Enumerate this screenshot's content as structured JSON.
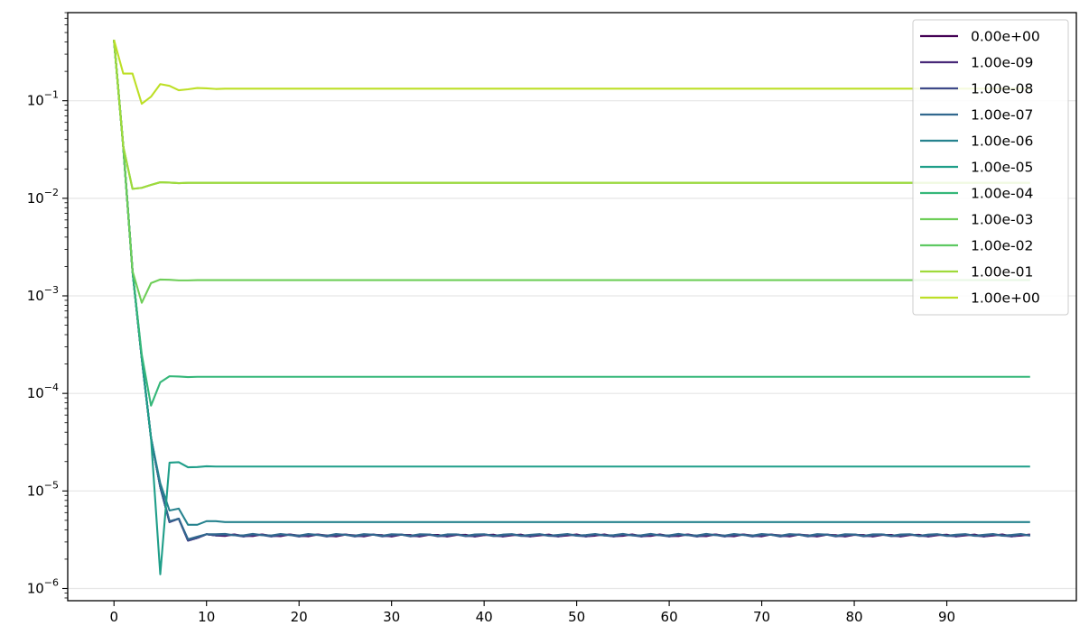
{
  "chart_data": {
    "type": "line",
    "title": "",
    "xlabel": "",
    "ylabel": "",
    "yscale": "log",
    "xlim": [
      -5,
      104
    ],
    "ylim": [
      7.5e-07,
      0.8
    ],
    "x_ticks": [
      0,
      10,
      20,
      30,
      40,
      50,
      60,
      70,
      80,
      90
    ],
    "x_tick_labels": [
      "0",
      "10",
      "20",
      "30",
      "40",
      "50",
      "60",
      "70",
      "80",
      "90"
    ],
    "y_ticks": [
      1e-06,
      1e-05,
      0.0001,
      0.001,
      0.01,
      0.1
    ],
    "y_tick_labels": [
      {
        "base": "10",
        "exp": "−6"
      },
      {
        "base": "10",
        "exp": "−5"
      },
      {
        "base": "10",
        "exp": "−4"
      },
      {
        "base": "10",
        "exp": "−3"
      },
      {
        "base": "10",
        "exp": "−2"
      },
      {
        "base": "10",
        "exp": "−1"
      }
    ],
    "grid": "y-major",
    "legend_position": "top-right",
    "x_start": 0,
    "x_end": 99,
    "series": [
      {
        "name": "0.00e+00",
        "color": "#440154",
        "head": [
          0.42,
          0.034,
          0.0018,
          0.00023,
          3.5e-05,
          1.1e-05,
          4.8e-06,
          5.2e-06,
          3.1e-06,
          3.3e-06,
          3.6e-06,
          3.5e-06
        ],
        "steady": 3.5e-06,
        "wiggle": 0.025
      },
      {
        "name": "1.00e-09",
        "color": "#482878",
        "head": [
          0.42,
          0.034,
          0.0018,
          0.00023,
          3.5e-05,
          1.1e-05,
          4.8e-06,
          5.2e-06,
          3.1e-06,
          3.3e-06,
          3.6e-06,
          3.5e-06
        ],
        "steady": 3.5e-06,
        "wiggle": 0.025
      },
      {
        "name": "1.00e-08",
        "color": "#3e4989",
        "head": [
          0.42,
          0.034,
          0.0018,
          0.00023,
          3.5e-05,
          1.1e-05,
          4.8e-06,
          5.2e-06,
          3.1e-06,
          3.3e-06,
          3.6e-06,
          3.5e-06
        ],
        "steady": 3.5e-06,
        "wiggle": 0.025
      },
      {
        "name": "1.00e-07",
        "color": "#31688e",
        "head": [
          0.42,
          0.034,
          0.0018,
          0.00023,
          3.5e-05,
          1.1e-05,
          4.9e-06,
          5.2e-06,
          3.2e-06,
          3.4e-06,
          3.6e-06,
          3.6e-06
        ],
        "steady": 3.55e-06,
        "wiggle": 0.022
      },
      {
        "name": "1.00e-06",
        "color": "#26828e",
        "head": [
          0.42,
          0.034,
          0.0018,
          0.00023,
          3.5e-05,
          1.2e-05,
          6.3e-06,
          6.6e-06,
          4.5e-06,
          4.5e-06,
          4.9e-06,
          4.9e-06
        ],
        "steady": 4.8e-06,
        "wiggle": 0.0
      },
      {
        "name": "1.00e-05",
        "color": "#1f9e89",
        "head": [
          0.42,
          0.034,
          0.0018,
          0.00023,
          3.5e-05,
          1.4e-06,
          1.95e-05,
          1.97e-05,
          1.75e-05,
          1.76e-05,
          1.79e-05,
          1.78e-05
        ],
        "steady": 1.78e-05,
        "wiggle": 0.0
      },
      {
        "name": "1.00e-04",
        "color": "#35b779",
        "head": [
          0.42,
          0.034,
          0.0018,
          0.00025,
          7.5e-05,
          0.00013,
          0.00015,
          0.000149,
          0.000147,
          0.000148,
          0.000148,
          0.000148
        ],
        "steady": 0.000148,
        "wiggle": 0.0
      },
      {
        "name": "1.00e-03",
        "color": "#6ece58",
        "head": [
          0.42,
          0.034,
          0.0018,
          0.00085,
          0.00135,
          0.00147,
          0.00146,
          0.00144,
          0.00144,
          0.00145,
          0.00145,
          0.00145
        ],
        "steady": 0.00145,
        "wiggle": 0.0
      },
      {
        "name": "1.00e-02",
        "color": "#5ec962",
        "head": [
          0.42,
          0.034,
          0.0125,
          0.0128,
          0.0137,
          0.0146,
          0.0145,
          0.0143,
          0.0144,
          0.0144,
          0.0144,
          0.0144
        ],
        "steady": 0.0144,
        "wiggle": 0.0
      },
      {
        "name": "1.00e-01",
        "color": "#9fda3a",
        "head": [
          0.42,
          0.034,
          0.0125,
          0.0128,
          0.0137,
          0.0146,
          0.0145,
          0.0143,
          0.0144,
          0.0144,
          0.0144,
          0.0144
        ],
        "steady": 0.0144,
        "wiggle": 0.0
      },
      {
        "name": "1.00e+00",
        "color": "#bddf26",
        "head": [
          0.42,
          0.19,
          0.19,
          0.093,
          0.11,
          0.148,
          0.142,
          0.128,
          0.131,
          0.135,
          0.134,
          0.132
        ],
        "steady": 0.133,
        "wiggle": 0.0
      }
    ]
  }
}
